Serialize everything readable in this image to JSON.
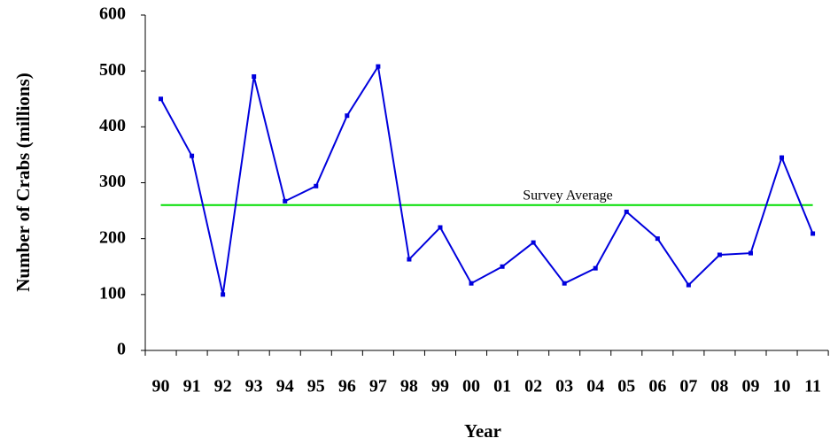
{
  "chart_data": {
    "type": "line",
    "x_label": "Year",
    "y_label": "Number of Crabs (millions)",
    "categories": [
      "90",
      "91",
      "92",
      "93",
      "94",
      "95",
      "96",
      "97",
      "98",
      "99",
      "00",
      "01",
      "02",
      "03",
      "04",
      "05",
      "06",
      "07",
      "08",
      "09",
      "10",
      "11"
    ],
    "series": [
      {
        "name": "Crabs",
        "color": "#0000dd",
        "values": [
          450,
          348,
          100,
          490,
          267,
          294,
          420,
          508,
          163,
          220,
          120,
          150,
          193,
          120,
          147,
          248,
          200,
          117,
          171,
          174,
          345,
          209
        ]
      }
    ],
    "reference_line": {
      "value": 260,
      "label": "Survey Average",
      "color": "#00dd00"
    },
    "ylim": [
      0,
      600
    ],
    "yticks": [
      0,
      100,
      200,
      300,
      400,
      500,
      600
    ],
    "grid": false,
    "legend": false
  }
}
